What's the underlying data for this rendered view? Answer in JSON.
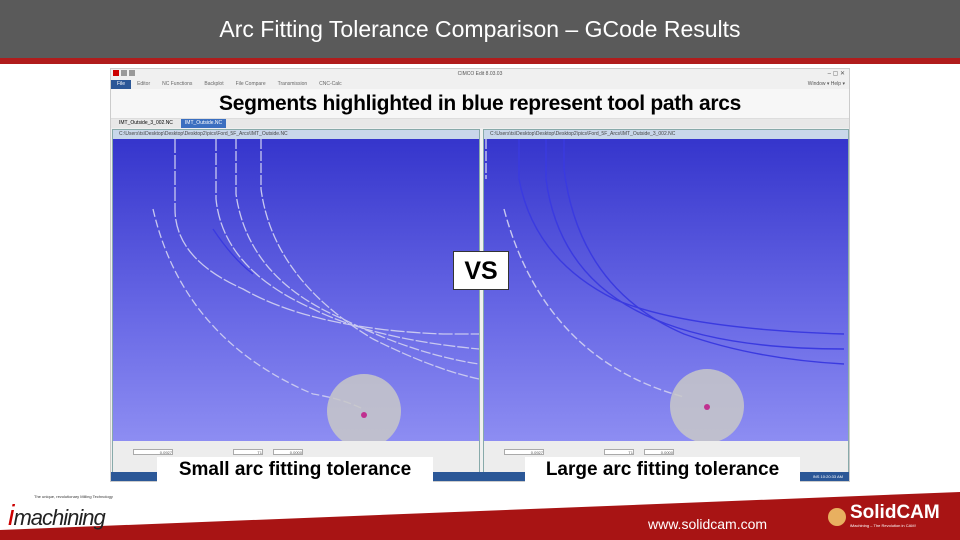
{
  "slide": {
    "title": "Arc Fitting Tolerance Comparison – GCode Results",
    "headline": "Segments highlighted in blue represent tool path arcs",
    "vs_label": "VS",
    "caption_left": "Small arc fitting tolerance",
    "caption_right": "Large arc fitting tolerance"
  },
  "app": {
    "title": "CIMCO Edit 8.03.03",
    "menu": [
      "File",
      "Editor",
      "NC Functions",
      "Backplot",
      "File Compare",
      "Transmission",
      "CNC-Calc"
    ],
    "window_menu": "Window ▾  Help ▾",
    "tabs": [
      "IMT_Outside_3_002.NC",
      "IMT_Outside.NC"
    ],
    "left_pane": {
      "path": "C:\\Users\\ts\\Desktop\\Desktop\\Desktop2\\pics\\Ford_5F_Arcs\\IMT_Outside.NC",
      "x": "0.0927",
      "tool": "T1",
      "dist": "0.0000"
    },
    "right_pane": {
      "path": "C:\\Users\\ts\\Desktop\\Desktop\\Desktop2\\pics\\Ford_5F_Arcs\\IMT_Outside_3_002.NC",
      "x": "0.0927",
      "tool": "T1",
      "dist": "0.0000"
    },
    "status": "INS 10:20:33 AM"
  },
  "footer": {
    "url": "www.solidcam.com",
    "imachining_logo": "imachining",
    "imachining_tagline": "The unique, revolutionary Milling Technology",
    "solidcam_logo": "SolidCAM",
    "solidcam_tagline": "iMachining – The Revolution in CAM!"
  },
  "colors": {
    "title_bg": "#5a5a5a",
    "accent_red": "#b01c1c",
    "arc_blue": "#3a3ae0",
    "line_light": "#c8c8f0"
  }
}
